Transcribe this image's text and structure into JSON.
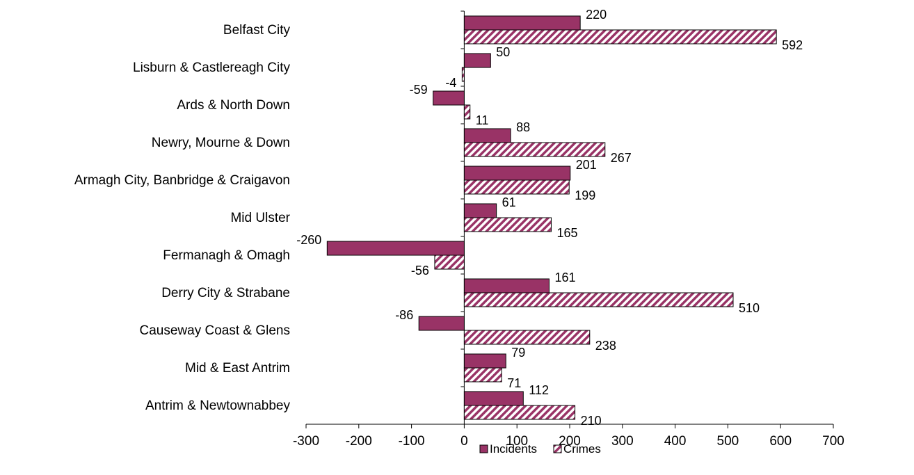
{
  "chart_data": {
    "type": "bar",
    "orientation": "horizontal",
    "title": "",
    "xlabel": "",
    "ylabel": "",
    "xlim": [
      -300,
      700
    ],
    "xticks": [
      -300,
      -200,
      -100,
      0,
      100,
      200,
      300,
      400,
      500,
      600,
      700
    ],
    "grid": false,
    "legend_position": "bottom",
    "categories": [
      "Belfast City",
      "Lisburn & Castlereagh City",
      "Ards & North Down",
      "Newry, Mourne & Down",
      "Armagh City, Banbridge & Craigavon",
      "Mid Ulster",
      "Fermanagh & Omagh",
      "Derry City & Strabane",
      "Causeway Coast & Glens",
      "Mid & East Antrim",
      "Antrim & Newtownabbey"
    ],
    "series": [
      {
        "name": "Incidents",
        "color": "#993366",
        "pattern": "solid",
        "values": [
          220,
          50,
          -59,
          88,
          201,
          61,
          -260,
          161,
          -86,
          79,
          112
        ]
      },
      {
        "name": "Crimes",
        "color": "#993366",
        "pattern": "diagonal-hatch",
        "values": [
          592,
          -4,
          11,
          267,
          199,
          165,
          -56,
          510,
          238,
          71,
          210
        ]
      }
    ]
  }
}
